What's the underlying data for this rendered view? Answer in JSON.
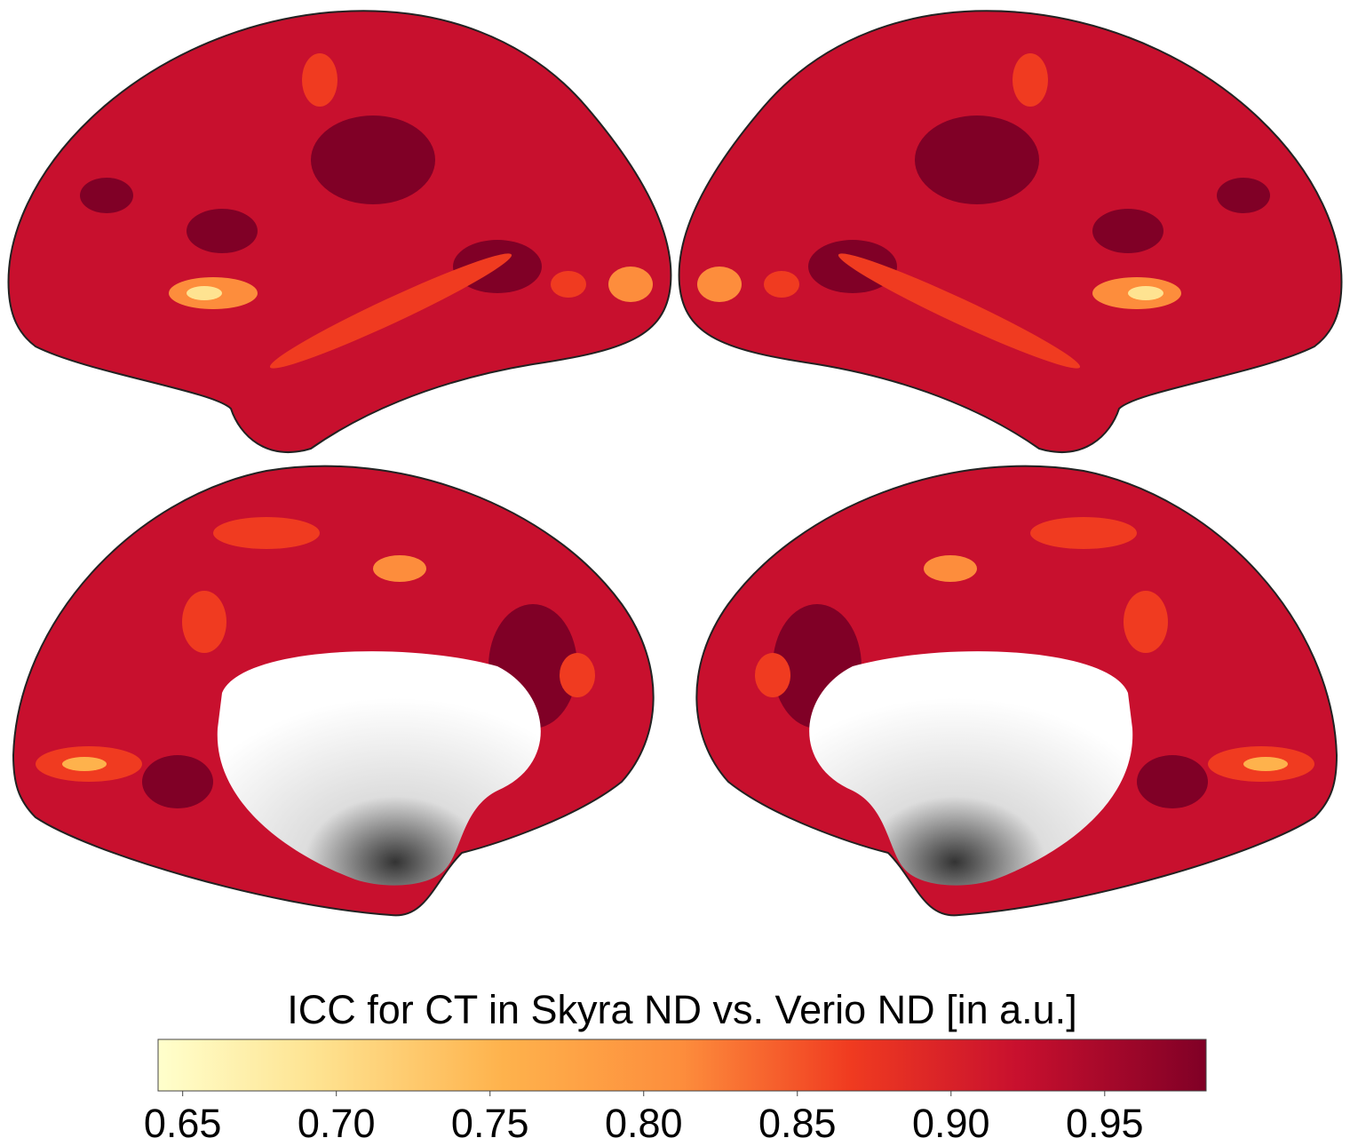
{
  "colorbar": {
    "title": "ICC for CT in Skyra ND vs. Verio ND [in a.u.]",
    "lim": [
      0.642,
      0.983
    ],
    "ticks": [
      {
        "value": 0.65,
        "label": "0.65"
      },
      {
        "value": 0.7,
        "label": "0.70"
      },
      {
        "value": 0.75,
        "label": "0.75"
      },
      {
        "value": 0.8,
        "label": "0.80"
      },
      {
        "value": 0.85,
        "label": "0.85"
      },
      {
        "value": 0.9,
        "label": "0.90"
      },
      {
        "value": 0.95,
        "label": "0.95"
      }
    ]
  }
}
